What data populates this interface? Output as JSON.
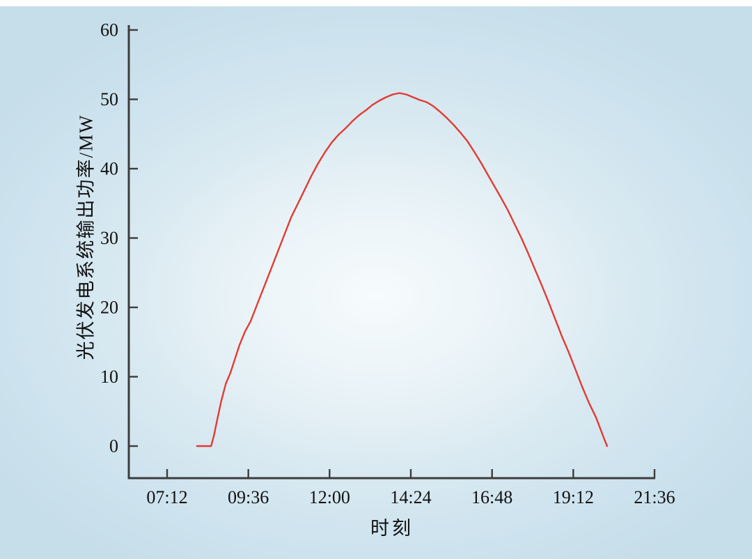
{
  "colors": {
    "line": "#e23b32",
    "axis": "#3c3c3c",
    "text": "#111111",
    "background_outer": "#c6deea",
    "background_center": "#f7fbfc"
  },
  "chart_data": {
    "type": "line",
    "title": "",
    "xlabel": "时刻",
    "ylabel": "光伏发电系统输出功率/MW",
    "x_ticks": [
      "07:12",
      "09:36",
      "12:00",
      "14:24",
      "16:48",
      "19:12",
      "21:36"
    ],
    "y_ticks": [
      0,
      10,
      20,
      30,
      40,
      50,
      60
    ],
    "xlim_hours": [
      7.2,
      21.6
    ],
    "ylim": [
      0,
      60
    ],
    "grid": false,
    "legend": null,
    "axis_color": "#3c3c3c",
    "line_color": "#e23b32",
    "series": [
      {
        "name": "光伏发电系统输出功率",
        "units": "MW",
        "points": [
          [
            "08:05",
            0
          ],
          [
            "08:30",
            0
          ],
          [
            "08:35",
            1.5
          ],
          [
            "08:40",
            3.5
          ],
          [
            "08:48",
            6.5
          ],
          [
            "08:56",
            9
          ],
          [
            "09:04",
            10.5
          ],
          [
            "09:10",
            12
          ],
          [
            "09:20",
            14.5
          ],
          [
            "09:30",
            16.5
          ],
          [
            "09:40",
            18
          ],
          [
            "09:52",
            20.5
          ],
          [
            "10:04",
            23
          ],
          [
            "10:16",
            25.5
          ],
          [
            "10:28",
            28
          ],
          [
            "10:40",
            30.5
          ],
          [
            "10:52",
            33
          ],
          [
            "11:04",
            35
          ],
          [
            "11:16",
            37
          ],
          [
            "11:28",
            39
          ],
          [
            "11:40",
            40.8
          ],
          [
            "11:52",
            42.4
          ],
          [
            "12:04",
            43.8
          ],
          [
            "12:16",
            44.9
          ],
          [
            "12:28",
            45.8
          ],
          [
            "12:40",
            46.8
          ],
          [
            "12:52",
            47.7
          ],
          [
            "13:04",
            48.4
          ],
          [
            "13:16",
            49.2
          ],
          [
            "13:28",
            49.8
          ],
          [
            "13:40",
            50.3
          ],
          [
            "13:52",
            50.7
          ],
          [
            "14:04",
            50.9
          ],
          [
            "14:16",
            50.7
          ],
          [
            "14:28",
            50.3
          ],
          [
            "14:40",
            49.9
          ],
          [
            "14:52",
            49.6
          ],
          [
            "15:04",
            49.0
          ],
          [
            "15:16",
            48.2
          ],
          [
            "15:28",
            47.3
          ],
          [
            "15:40",
            46.3
          ],
          [
            "15:52",
            45.2
          ],
          [
            "16:04",
            44.0
          ],
          [
            "16:16",
            42.5
          ],
          [
            "16:28",
            40.9
          ],
          [
            "16:40",
            39.2
          ],
          [
            "16:52",
            37.5
          ],
          [
            "17:04",
            35.8
          ],
          [
            "17:16",
            34.0
          ],
          [
            "17:28",
            32.0
          ],
          [
            "17:40",
            30.0
          ],
          [
            "17:52",
            27.8
          ],
          [
            "18:04",
            25.5
          ],
          [
            "18:16",
            23.2
          ],
          [
            "18:28",
            20.8
          ],
          [
            "18:40",
            18.3
          ],
          [
            "18:52",
            15.8
          ],
          [
            "19:04",
            13.5
          ],
          [
            "19:16",
            11.0
          ],
          [
            "19:28",
            8.5
          ],
          [
            "19:40",
            6.2
          ],
          [
            "19:52",
            4.2
          ],
          [
            "20:00",
            2.5
          ],
          [
            "20:06",
            1.2
          ],
          [
            "20:12",
            0
          ]
        ]
      }
    ]
  }
}
